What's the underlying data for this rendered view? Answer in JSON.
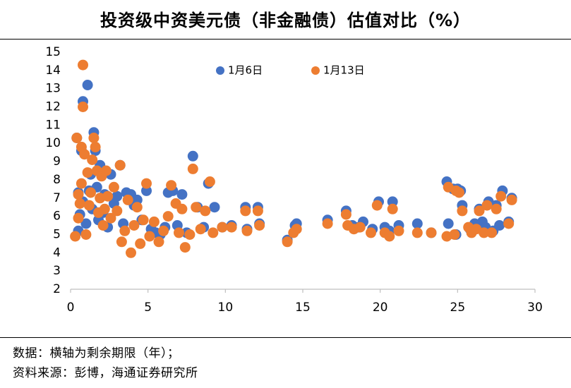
{
  "title": "投资级中资美元债（非金融债）估值对比（%）",
  "notes": {
    "line1": "数据：横轴为剩余期限（年）；",
    "line2": "资料来源：彭博，海通证券研究所"
  },
  "colors": {
    "series1": "#4472C4",
    "series2": "#ED7D31",
    "axis": "#BFBFBF"
  },
  "chart_data": {
    "type": "scatter",
    "title": "投资级中资美元债（非金融债）估值对比（%）",
    "xlabel": "",
    "ylabel": "",
    "xlim": [
      0,
      30
    ],
    "ylim": [
      2,
      15
    ],
    "xticks": [
      "0",
      "5",
      "10",
      "15",
      "20",
      "25",
      "30"
    ],
    "yticks": [
      "2",
      "3",
      "4",
      "5",
      "6",
      "7",
      "8",
      "9",
      "10",
      "11",
      "12",
      "13",
      "14",
      "15"
    ],
    "grid": false,
    "legend": "top",
    "series": [
      {
        "name": "1月6日",
        "color": "#4472C4",
        "points": [
          [
            0.4,
            10.3
          ],
          [
            0.5,
            7.3
          ],
          [
            0.5,
            5.2
          ],
          [
            0.6,
            6.1
          ],
          [
            0.7,
            9.6
          ],
          [
            0.8,
            12.3
          ],
          [
            0.8,
            6.8
          ],
          [
            1.0,
            5.6
          ],
          [
            1.1,
            13.2
          ],
          [
            1.2,
            7.4
          ],
          [
            1.3,
            8.3
          ],
          [
            1.4,
            6.4
          ],
          [
            1.5,
            10.6
          ],
          [
            1.6,
            9.6
          ],
          [
            1.7,
            7.6
          ],
          [
            1.8,
            5.8
          ],
          [
            1.9,
            8.8
          ],
          [
            2.0,
            8.5
          ],
          [
            2.1,
            6.2
          ],
          [
            2.2,
            7.2
          ],
          [
            2.4,
            5.4
          ],
          [
            2.6,
            8.3
          ],
          [
            2.8,
            6.7
          ],
          [
            3.0,
            7.1
          ],
          [
            3.2,
            8.8
          ],
          [
            3.4,
            5.6
          ],
          [
            3.6,
            7.3
          ],
          [
            3.9,
            7.2
          ],
          [
            4.1,
            6.6
          ],
          [
            4.3,
            6.9
          ],
          [
            4.6,
            5.8
          ],
          [
            4.9,
            7.4
          ],
          [
            5.2,
            5.3
          ],
          [
            5.5,
            5.1
          ],
          [
            5.8,
            5.0
          ],
          [
            6.1,
            5.4
          ],
          [
            6.3,
            7.3
          ],
          [
            6.6,
            7.4
          ],
          [
            6.9,
            5.5
          ],
          [
            7.2,
            7.2
          ],
          [
            7.5,
            5.1
          ],
          [
            7.9,
            9.3
          ],
          [
            8.2,
            6.5
          ],
          [
            8.6,
            5.4
          ],
          [
            8.9,
            7.8
          ],
          [
            9.3,
            6.5
          ],
          [
            9.8,
            5.4
          ],
          [
            10.4,
            5.5
          ],
          [
            11.3,
            6.5
          ],
          [
            11.4,
            5.3
          ],
          [
            12.1,
            6.5
          ],
          [
            12.2,
            5.6
          ],
          [
            14.0,
            4.7
          ],
          [
            14.5,
            5.5
          ],
          [
            14.6,
            5.6
          ],
          [
            16.6,
            5.8
          ],
          [
            17.8,
            6.3
          ],
          [
            18.2,
            5.5
          ],
          [
            18.6,
            5.4
          ],
          [
            18.9,
            5.7
          ],
          [
            19.5,
            5.3
          ],
          [
            19.9,
            6.8
          ],
          [
            20.3,
            5.4
          ],
          [
            20.6,
            5.2
          ],
          [
            20.8,
            6.8
          ],
          [
            21.2,
            5.5
          ],
          [
            22.4,
            5.6
          ],
          [
            23.3,
            5.1
          ],
          [
            24.3,
            7.9
          ],
          [
            24.4,
            5.6
          ],
          [
            24.7,
            7.5
          ],
          [
            24.9,
            5.0
          ],
          [
            25.0,
            7.5
          ],
          [
            25.2,
            7.4
          ],
          [
            25.3,
            6.6
          ],
          [
            25.8,
            5.3
          ],
          [
            26.1,
            5.6
          ],
          [
            26.4,
            6.4
          ],
          [
            26.6,
            5.7
          ],
          [
            26.8,
            5.4
          ],
          [
            27.0,
            6.8
          ],
          [
            27.3,
            5.2
          ],
          [
            27.5,
            6.6
          ],
          [
            27.7,
            5.5
          ],
          [
            27.9,
            7.4
          ],
          [
            28.3,
            5.7
          ],
          [
            28.5,
            7.0
          ]
        ]
      },
      {
        "name": "1月13日",
        "color": "#ED7D31",
        "points": [
          [
            0.3,
            4.9
          ],
          [
            0.4,
            10.3
          ],
          [
            0.5,
            7.2
          ],
          [
            0.5,
            5.9
          ],
          [
            0.6,
            6.7
          ],
          [
            0.7,
            9.8
          ],
          [
            0.7,
            7.8
          ],
          [
            0.8,
            14.3
          ],
          [
            0.8,
            12.0
          ],
          [
            0.9,
            9.4
          ],
          [
            1.0,
            5.0
          ],
          [
            1.1,
            8.4
          ],
          [
            1.2,
            6.6
          ],
          [
            1.3,
            7.3
          ],
          [
            1.4,
            9.1
          ],
          [
            1.5,
            10.3
          ],
          [
            1.6,
            9.8
          ],
          [
            1.7,
            8.5
          ],
          [
            1.8,
            6.2
          ],
          [
            1.9,
            7.0
          ],
          [
            2.0,
            8.2
          ],
          [
            2.1,
            5.5
          ],
          [
            2.2,
            6.4
          ],
          [
            2.3,
            8.5
          ],
          [
            2.4,
            7.1
          ],
          [
            2.6,
            5.9
          ],
          [
            2.8,
            7.6
          ],
          [
            3.0,
            6.3
          ],
          [
            3.2,
            8.8
          ],
          [
            3.3,
            4.6
          ],
          [
            3.5,
            5.2
          ],
          [
            3.7,
            6.9
          ],
          [
            3.9,
            4.0
          ],
          [
            4.1,
            5.5
          ],
          [
            4.3,
            6.5
          ],
          [
            4.5,
            4.5
          ],
          [
            4.7,
            5.8
          ],
          [
            4.9,
            7.8
          ],
          [
            5.1,
            4.9
          ],
          [
            5.4,
            5.7
          ],
          [
            5.7,
            4.6
          ],
          [
            6.0,
            5.2
          ],
          [
            6.3,
            6.0
          ],
          [
            6.5,
            7.7
          ],
          [
            6.8,
            6.7
          ],
          [
            7.0,
            5.1
          ],
          [
            7.2,
            6.4
          ],
          [
            7.4,
            4.3
          ],
          [
            7.7,
            5.0
          ],
          [
            7.9,
            8.6
          ],
          [
            8.1,
            6.5
          ],
          [
            8.4,
            5.3
          ],
          [
            8.7,
            6.3
          ],
          [
            9.0,
            7.9
          ],
          [
            9.2,
            5.1
          ],
          [
            9.8,
            5.4
          ],
          [
            10.4,
            5.4
          ],
          [
            11.3,
            6.3
          ],
          [
            11.4,
            5.2
          ],
          [
            12.1,
            6.3
          ],
          [
            12.2,
            5.5
          ],
          [
            14.0,
            4.6
          ],
          [
            14.4,
            5.1
          ],
          [
            14.6,
            5.3
          ],
          [
            16.6,
            5.6
          ],
          [
            17.8,
            6.1
          ],
          [
            17.9,
            5.5
          ],
          [
            18.3,
            5.3
          ],
          [
            18.7,
            5.4
          ],
          [
            19.4,
            5.1
          ],
          [
            19.8,
            6.6
          ],
          [
            20.3,
            5.1
          ],
          [
            20.6,
            4.9
          ],
          [
            20.8,
            6.4
          ],
          [
            21.2,
            5.2
          ],
          [
            22.4,
            5.1
          ],
          [
            23.3,
            5.1
          ],
          [
            24.3,
            4.9
          ],
          [
            24.4,
            7.6
          ],
          [
            24.8,
            5.0
          ],
          [
            24.9,
            7.4
          ],
          [
            25.1,
            7.3
          ],
          [
            25.3,
            6.3
          ],
          [
            25.7,
            5.4
          ],
          [
            25.9,
            5.1
          ],
          [
            26.2,
            5.3
          ],
          [
            26.4,
            6.3
          ],
          [
            26.7,
            5.1
          ],
          [
            26.9,
            6.6
          ],
          [
            27.2,
            5.1
          ],
          [
            27.5,
            6.4
          ],
          [
            27.8,
            7.1
          ],
          [
            28.3,
            5.6
          ],
          [
            28.5,
            6.9
          ]
        ]
      }
    ]
  }
}
